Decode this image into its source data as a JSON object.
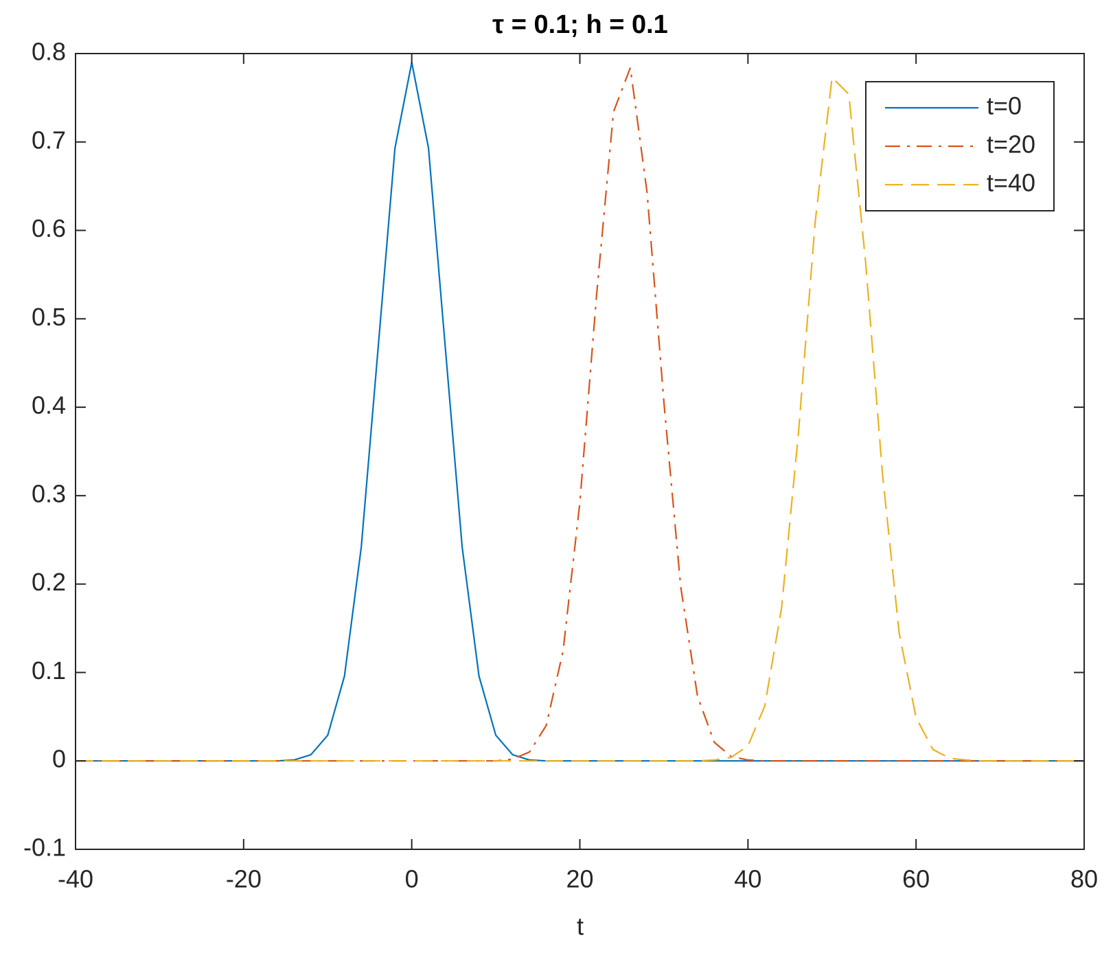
{
  "chart_data": {
    "type": "line",
    "title": "τ = 0.1; h = 0.1",
    "x_label": "t",
    "x": [
      -40,
      -38,
      -36,
      -34,
      -32,
      -30,
      -28,
      -26,
      -24,
      -22,
      -20,
      -18,
      -16,
      -14,
      -12,
      -10,
      -8,
      -6,
      -4,
      -2,
      0,
      2,
      4,
      6,
      8,
      10,
      12,
      14,
      16,
      18,
      20,
      22,
      24,
      26,
      28,
      30,
      32,
      34,
      36,
      38,
      40,
      42,
      44,
      46,
      48,
      50,
      52,
      54,
      56,
      58,
      60,
      62,
      64,
      66,
      68,
      70,
      72,
      74,
      76,
      78,
      80
    ],
    "series": [
      {
        "name": "t=0",
        "color": "#0072bd",
        "dash": "solid",
        "values": [
          0,
          0,
          0,
          0,
          0,
          0,
          0,
          0,
          0,
          0,
          0,
          0,
          0,
          0.001,
          0.007,
          0.029,
          0.096,
          0.242,
          0.467,
          0.693,
          0.79,
          0.693,
          0.467,
          0.242,
          0.096,
          0.029,
          0.007,
          0.001,
          0,
          0,
          0,
          0,
          0,
          0,
          0,
          0,
          0,
          0,
          0,
          0,
          0,
          0,
          0,
          0,
          0,
          0,
          0,
          0,
          0,
          0,
          0,
          0,
          0,
          0,
          0,
          0,
          0,
          0,
          0,
          0,
          0
        ]
      },
      {
        "name": "t=20",
        "color": "#d95319",
        "dash": "dashdot",
        "values": [
          0,
          0,
          0,
          0,
          0,
          0,
          0,
          0,
          0,
          0,
          0,
          0,
          0,
          0,
          0,
          0,
          0,
          0,
          0,
          0,
          0,
          0,
          0,
          0,
          0,
          0,
          0.002,
          0.01,
          0.04,
          0.124,
          0.292,
          0.528,
          0.734,
          0.784,
          0.643,
          0.406,
          0.197,
          0.073,
          0.021,
          0.005,
          0.001,
          0,
          0,
          0,
          0,
          0,
          0,
          0,
          0,
          0,
          0,
          0,
          0,
          0,
          0,
          0,
          0,
          0,
          0,
          0,
          0
        ]
      },
      {
        "name": "t=40",
        "color": "#edb120",
        "dash": "dashed",
        "values": [
          0,
          0,
          0,
          0,
          0,
          0,
          0,
          0,
          0,
          0,
          0,
          0,
          0,
          0,
          0,
          0,
          0,
          0,
          0,
          0,
          0,
          0,
          0,
          0,
          0,
          0,
          0,
          0,
          0,
          0,
          0,
          0,
          0,
          0,
          0,
          0,
          0,
          0,
          0.001,
          0.004,
          0.017,
          0.062,
          0.173,
          0.37,
          0.61,
          0.773,
          0.754,
          0.564,
          0.325,
          0.144,
          0.049,
          0.013,
          0.003,
          0.001,
          0,
          0,
          0,
          0,
          0,
          0,
          0
        ]
      }
    ],
    "xlim": [
      -40,
      80
    ],
    "xticks": [
      -40,
      -20,
      0,
      20,
      40,
      60,
      80
    ],
    "ylim": [
      -0.1,
      0.8
    ],
    "yticks": [
      -0.1,
      0,
      0.1,
      0.2,
      0.3,
      0.4,
      0.5,
      0.6,
      0.7,
      0.8
    ],
    "grid": false,
    "legend": "upper right"
  }
}
